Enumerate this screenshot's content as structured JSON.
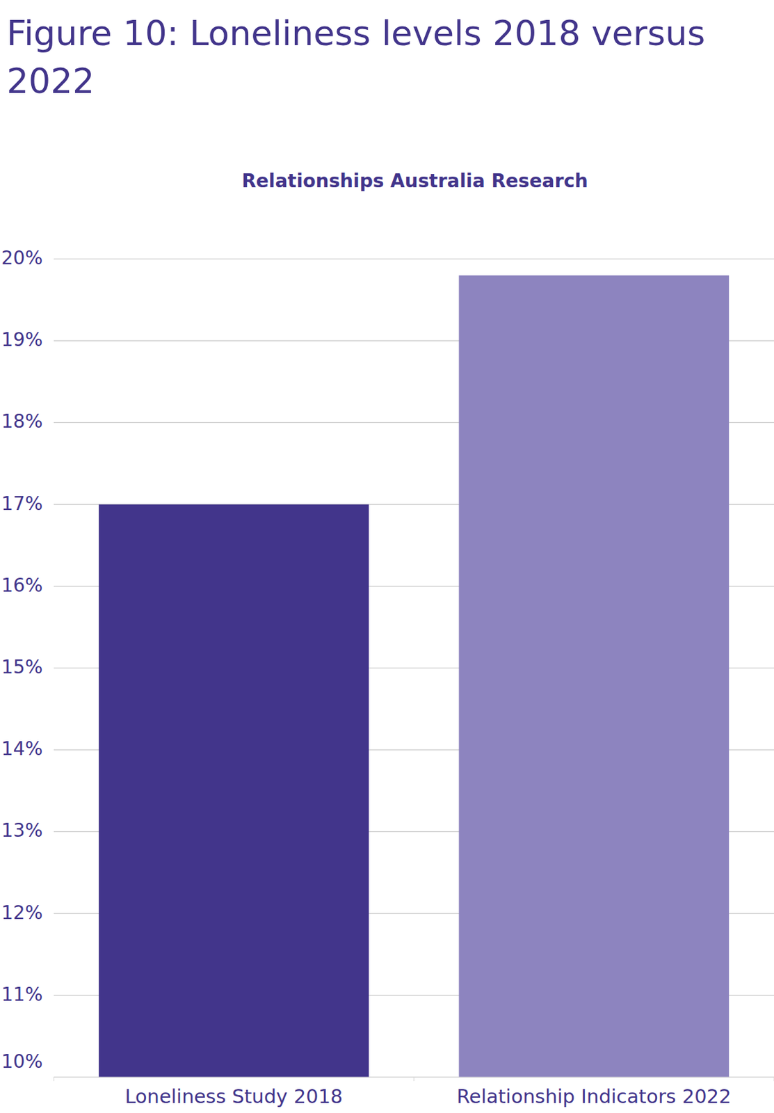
{
  "chart_data": {
    "type": "bar",
    "title": "Figure 10: Loneliness levels 2018 versus 2022",
    "subtitle": "Relationships Australia Research",
    "categories": [
      "Loneliness Study 2018",
      "Relationship Indicators 2022"
    ],
    "values": [
      17,
      19.8
    ],
    "colors": [
      "#42358b",
      "#8d84bf"
    ],
    "ylim": [
      10,
      20
    ],
    "yticks": [
      {
        "value": 10,
        "label": "10%"
      },
      {
        "value": 11,
        "label": "11%"
      },
      {
        "value": 12,
        "label": "12%"
      },
      {
        "value": 13,
        "label": "13%"
      },
      {
        "value": 14,
        "label": "14%"
      },
      {
        "value": 15,
        "label": "15%"
      },
      {
        "value": 16,
        "label": "16%"
      },
      {
        "value": 17,
        "label": "17%"
      },
      {
        "value": 18,
        "label": "18%"
      },
      {
        "value": 19,
        "label": "19%"
      },
      {
        "value": 20,
        "label": "20%"
      }
    ],
    "grid": true
  }
}
